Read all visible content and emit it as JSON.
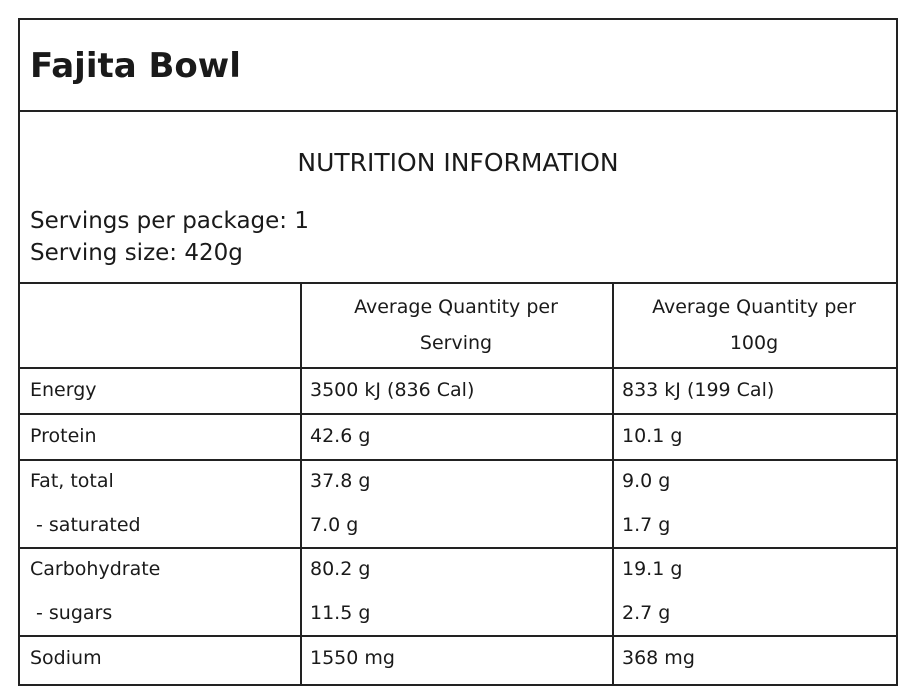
{
  "header": {
    "title": "Fajita Bowl"
  },
  "panel": {
    "heading": "NUTRITION INFORMATION",
    "servings_per_package": "Servings per package: 1",
    "serving_size": "Serving size: 420g"
  },
  "table": {
    "columns": [
      "",
      "Average Quantity per Serving",
      "Average Quantity per 100g"
    ],
    "groups": [
      [
        [
          "Energy",
          "3500 kJ (836 Cal)",
          "833 kJ (199 Cal)"
        ]
      ],
      [
        [
          "Protein",
          "42.6 g",
          "10.1 g"
        ]
      ],
      [
        [
          "Fat, total",
          "37.8 g",
          "9.0 g"
        ],
        [
          "- saturated",
          "7.0 g",
          "1.7 g"
        ]
      ],
      [
        [
          "Carbohydrate",
          "80.2 g",
          "19.1 g"
        ],
        [
          "- sugars",
          "11.5 g",
          "2.7 g"
        ]
      ],
      [
        [
          "Sodium",
          "1550 mg",
          "368 mg"
        ]
      ]
    ]
  }
}
